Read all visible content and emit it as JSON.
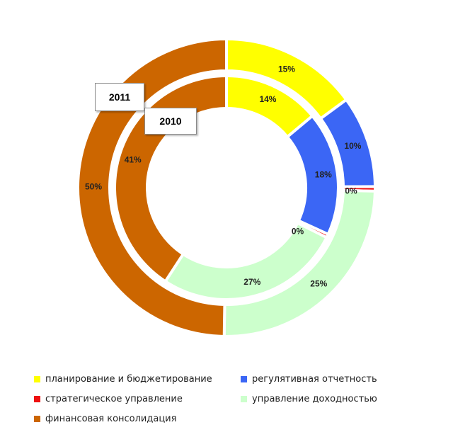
{
  "chart_data": {
    "type": "doughnut",
    "rings": [
      {
        "name": "2010",
        "values": [
          14,
          18,
          0.5,
          27,
          41
        ],
        "labels": [
          "14%",
          "18%",
          "0%",
          "27%",
          "41%"
        ]
      },
      {
        "name": "2011",
        "values": [
          15,
          10,
          0.5,
          25,
          50
        ],
        "labels": [
          "15%",
          "10%",
          "0%",
          "25%",
          "50%"
        ]
      }
    ],
    "categories": [
      "планирование и бюджетирование",
      "регулятивная отчетность",
      "стратегическое управление",
      "управление доходностью",
      "финансовая консолидация"
    ],
    "colors": [
      "#ffff00",
      "#3b66f5",
      "#ee1111",
      "#ccffcc",
      "#cc6600"
    ],
    "legend_position": "bottom"
  }
}
